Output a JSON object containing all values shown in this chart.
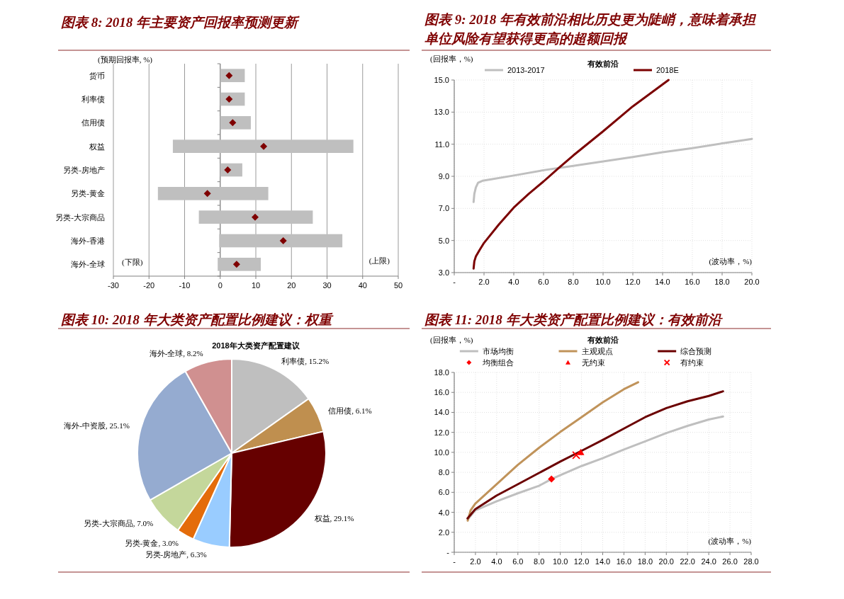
{
  "chart_data": [
    {
      "type": "bar",
      "orientation": "horizontal",
      "title": "图表 8: 2018 年主要资产回报率预测更新",
      "xlabel": "(预期回报率, %)",
      "categories": [
        "货币",
        "利率债",
        "信用债",
        "权益",
        "另类-房地产",
        "另类-黄金",
        "另类-大宗商品",
        "海外-香港",
        "海外-全球"
      ],
      "series": [
        {
          "type": "bar",
          "color": "#bfbfbf",
          "base": [
            0,
            0,
            0,
            -13.3,
            0,
            -17.5,
            -6.0,
            -0.3,
            -0.7
          ],
          "values": [
            6.9,
            6.9,
            8.6,
            50.7,
            6.2,
            31.0,
            32.0,
            34.6,
            12.1
          ]
        },
        {
          "type": "scatter",
          "color": "#7f0000",
          "marker": "diamond",
          "x": [
            "货币",
            "利率债",
            "信用债",
            "权益",
            "另类-房地产",
            "另类-黄金",
            "另类-大宗商品",
            "海外-香港",
            "海外-全球"
          ],
          "values": [
            2.5,
            2.5,
            3.5,
            12.2,
            2.1,
            -3.6,
            9.8,
            17.7,
            4.6
          ]
        }
      ],
      "xlim": [
        -30,
        50
      ],
      "xticks": [
        -30,
        -20,
        -10,
        0,
        10,
        20,
        30,
        40,
        50
      ],
      "grid": "x",
      "annotations": [
        "(下限)",
        "(上限)"
      ]
    },
    {
      "type": "line",
      "title": "图表 9: 2018 年有效前沿相比历史更为陡峭，意味着承担单位风险有望获得更高的超额回报",
      "subtitle": "有效前沿",
      "xlabel": "(波动率，%)",
      "ylabel": "(回报率，%)",
      "series": [
        {
          "name": "2013-2017",
          "color": "#bfbfbf",
          "x": [
            1.3,
            1.35,
            1.45,
            1.6,
            1.9,
            4,
            6,
            8,
            10,
            12,
            14,
            16,
            18,
            20
          ],
          "values": [
            7.4,
            7.9,
            8.3,
            8.6,
            8.72,
            9.05,
            9.38,
            9.65,
            9.93,
            10.2,
            10.5,
            10.75,
            11.05,
            11.33
          ]
        },
        {
          "name": "2018E",
          "color": "#7b0000",
          "x": [
            1.3,
            1.35,
            1.45,
            1.7,
            2,
            3,
            4,
            5,
            6,
            7,
            8,
            10,
            12,
            14.4
          ],
          "values": [
            3.25,
            3.7,
            4.0,
            4.4,
            4.85,
            6.0,
            7.05,
            7.9,
            8.68,
            9.5,
            10.3,
            11.8,
            13.36,
            15.0
          ]
        }
      ],
      "xlim": [
        0,
        20
      ],
      "xticks": [
        {
          "value": 0,
          "label": "-"
        },
        {
          "value": 2,
          "label": "2.0"
        },
        {
          "value": 4,
          "label": "4.0"
        },
        {
          "value": 6,
          "label": "6.0"
        },
        {
          "value": 8,
          "label": "8.0"
        },
        {
          "value": 10,
          "label": "10.0"
        },
        {
          "value": 12,
          "label": "12.0"
        },
        {
          "value": 14,
          "label": "14.0"
        },
        {
          "value": 16,
          "label": "16.0"
        },
        {
          "value": 18,
          "label": "18.0"
        },
        {
          "value": 20,
          "label": "20.0"
        }
      ],
      "ylim": [
        3,
        15
      ],
      "yticks": [
        {
          "value": 3,
          "label": "3.0"
        },
        {
          "value": 5,
          "label": "5.0"
        },
        {
          "value": 7,
          "label": "7.0"
        },
        {
          "value": 9,
          "label": "9.0"
        },
        {
          "value": 11,
          "label": "11.0"
        },
        {
          "value": 13,
          "label": "13.0"
        },
        {
          "value": 15,
          "label": "15.0"
        }
      ],
      "grid": true,
      "legend": "top"
    },
    {
      "type": "pie",
      "title": "图表 10: 2018 年大类资产配置比例建议：权重",
      "subtitle": "2018年大类资产配置建议",
      "categories": [
        "利率债",
        "信用债",
        "权益",
        "另类-房地产",
        "另类-黄金",
        "另类-大宗商品",
        "海外-中资股",
        "海外-全球"
      ],
      "values": [
        15.2,
        6.1,
        29.1,
        6.3,
        3.0,
        7.0,
        25.1,
        8.2
      ],
      "colors": [
        "#bfbfbf",
        "#bf8f4f",
        "#660000",
        "#99ccff",
        "#e46c0a",
        "#c4d79b",
        "#95abd0",
        "#d09090"
      ],
      "value_labels": [
        "15.2%",
        "6.1%",
        "29.1%",
        "6.3%",
        "3.0%",
        "7.0%",
        "25.1%",
        "8.2%"
      ]
    },
    {
      "type": "line",
      "title": "图表 11: 2018 年大类资产配置比例建议：有效前沿",
      "subtitle": "有效前沿",
      "xlabel": "(波动率，%)",
      "ylabel": "(回报率，%)",
      "series": [
        {
          "name": "市场均衡",
          "color": "#bfbfbf",
          "x": [
            1.27,
            1.98,
            3.98,
            5.99,
            7.99,
            9.17,
            10,
            12,
            14,
            16,
            18,
            20,
            22,
            24,
            25.35
          ],
          "values": [
            3.28,
            4.19,
            5.1,
            5.9,
            6.65,
            7.33,
            7.72,
            8.63,
            9.42,
            10.29,
            11.1,
            11.93,
            12.65,
            13.29,
            13.59
          ]
        },
        {
          "name": "主观观点",
          "color": "#c0935a",
          "x": [
            1.27,
            1.54,
            1.98,
            3.98,
            5.99,
            7.99,
            10,
            12,
            14,
            16,
            17.34
          ],
          "values": [
            3.16,
            4.19,
            4.87,
            6.8,
            8.74,
            10.45,
            12.04,
            13.52,
            15.0,
            16.32,
            17.02
          ]
        },
        {
          "name": "综合预测",
          "color": "#6b0000",
          "x": [
            1.25,
            1.98,
            3.98,
            5.99,
            7.99,
            10,
            12,
            14,
            16,
            18,
            20,
            22,
            24,
            25.35
          ],
          "values": [
            3.39,
            4.3,
            5.67,
            6.8,
            7.94,
            9.08,
            10.15,
            11.24,
            12.38,
            13.52,
            14.43,
            15.11,
            15.64,
            16.11
          ]
        },
        {
          "name": "均衡组合",
          "type": "scatter",
          "marker": "diamond",
          "color": "#ff0000",
          "x": [
            9.17
          ],
          "values": [
            7.33
          ]
        },
        {
          "name": "无约束",
          "type": "scatter",
          "marker": "triangle",
          "color": "#ff0000",
          "x": [
            11.93
          ],
          "values": [
            10.01
          ]
        },
        {
          "name": "有约束",
          "type": "scatter",
          "marker": "cross",
          "color": "#ff0000",
          "x": [
            11.5
          ],
          "values": [
            9.72
          ]
        }
      ],
      "xlim": [
        0,
        28
      ],
      "xticks": [
        {
          "value": 0,
          "label": "-"
        },
        {
          "value": 2,
          "label": "2.0"
        },
        {
          "value": 4,
          "label": "4.0"
        },
        {
          "value": 6,
          "label": "6.0"
        },
        {
          "value": 8,
          "label": "8.0"
        },
        {
          "value": 10,
          "label": "10.0"
        },
        {
          "value": 12,
          "label": "12.0"
        },
        {
          "value": 14,
          "label": "14.0"
        },
        {
          "value": 16,
          "label": "16.0"
        },
        {
          "value": 18,
          "label": "18.0"
        },
        {
          "value": 20,
          "label": "20.0"
        },
        {
          "value": 22,
          "label": "22.0"
        },
        {
          "value": 24,
          "label": "24.0"
        },
        {
          "value": 26,
          "label": "26.0"
        },
        {
          "value": 28,
          "label": "28.0"
        }
      ],
      "ylim": [
        0,
        18
      ],
      "yticks": [
        {
          "value": 0,
          "label": "-"
        },
        {
          "value": 2,
          "label": "2.0"
        },
        {
          "value": 4,
          "label": "4.0"
        },
        {
          "value": 6,
          "label": "6.0"
        },
        {
          "value": 8,
          "label": "8.0"
        },
        {
          "value": 10,
          "label": "10.0"
        },
        {
          "value": 12,
          "label": "12.0"
        },
        {
          "value": 14,
          "label": "14.0"
        },
        {
          "value": 16,
          "label": "16.0"
        },
        {
          "value": 18,
          "label": "18.0"
        }
      ],
      "grid": true,
      "legend": "top"
    }
  ]
}
